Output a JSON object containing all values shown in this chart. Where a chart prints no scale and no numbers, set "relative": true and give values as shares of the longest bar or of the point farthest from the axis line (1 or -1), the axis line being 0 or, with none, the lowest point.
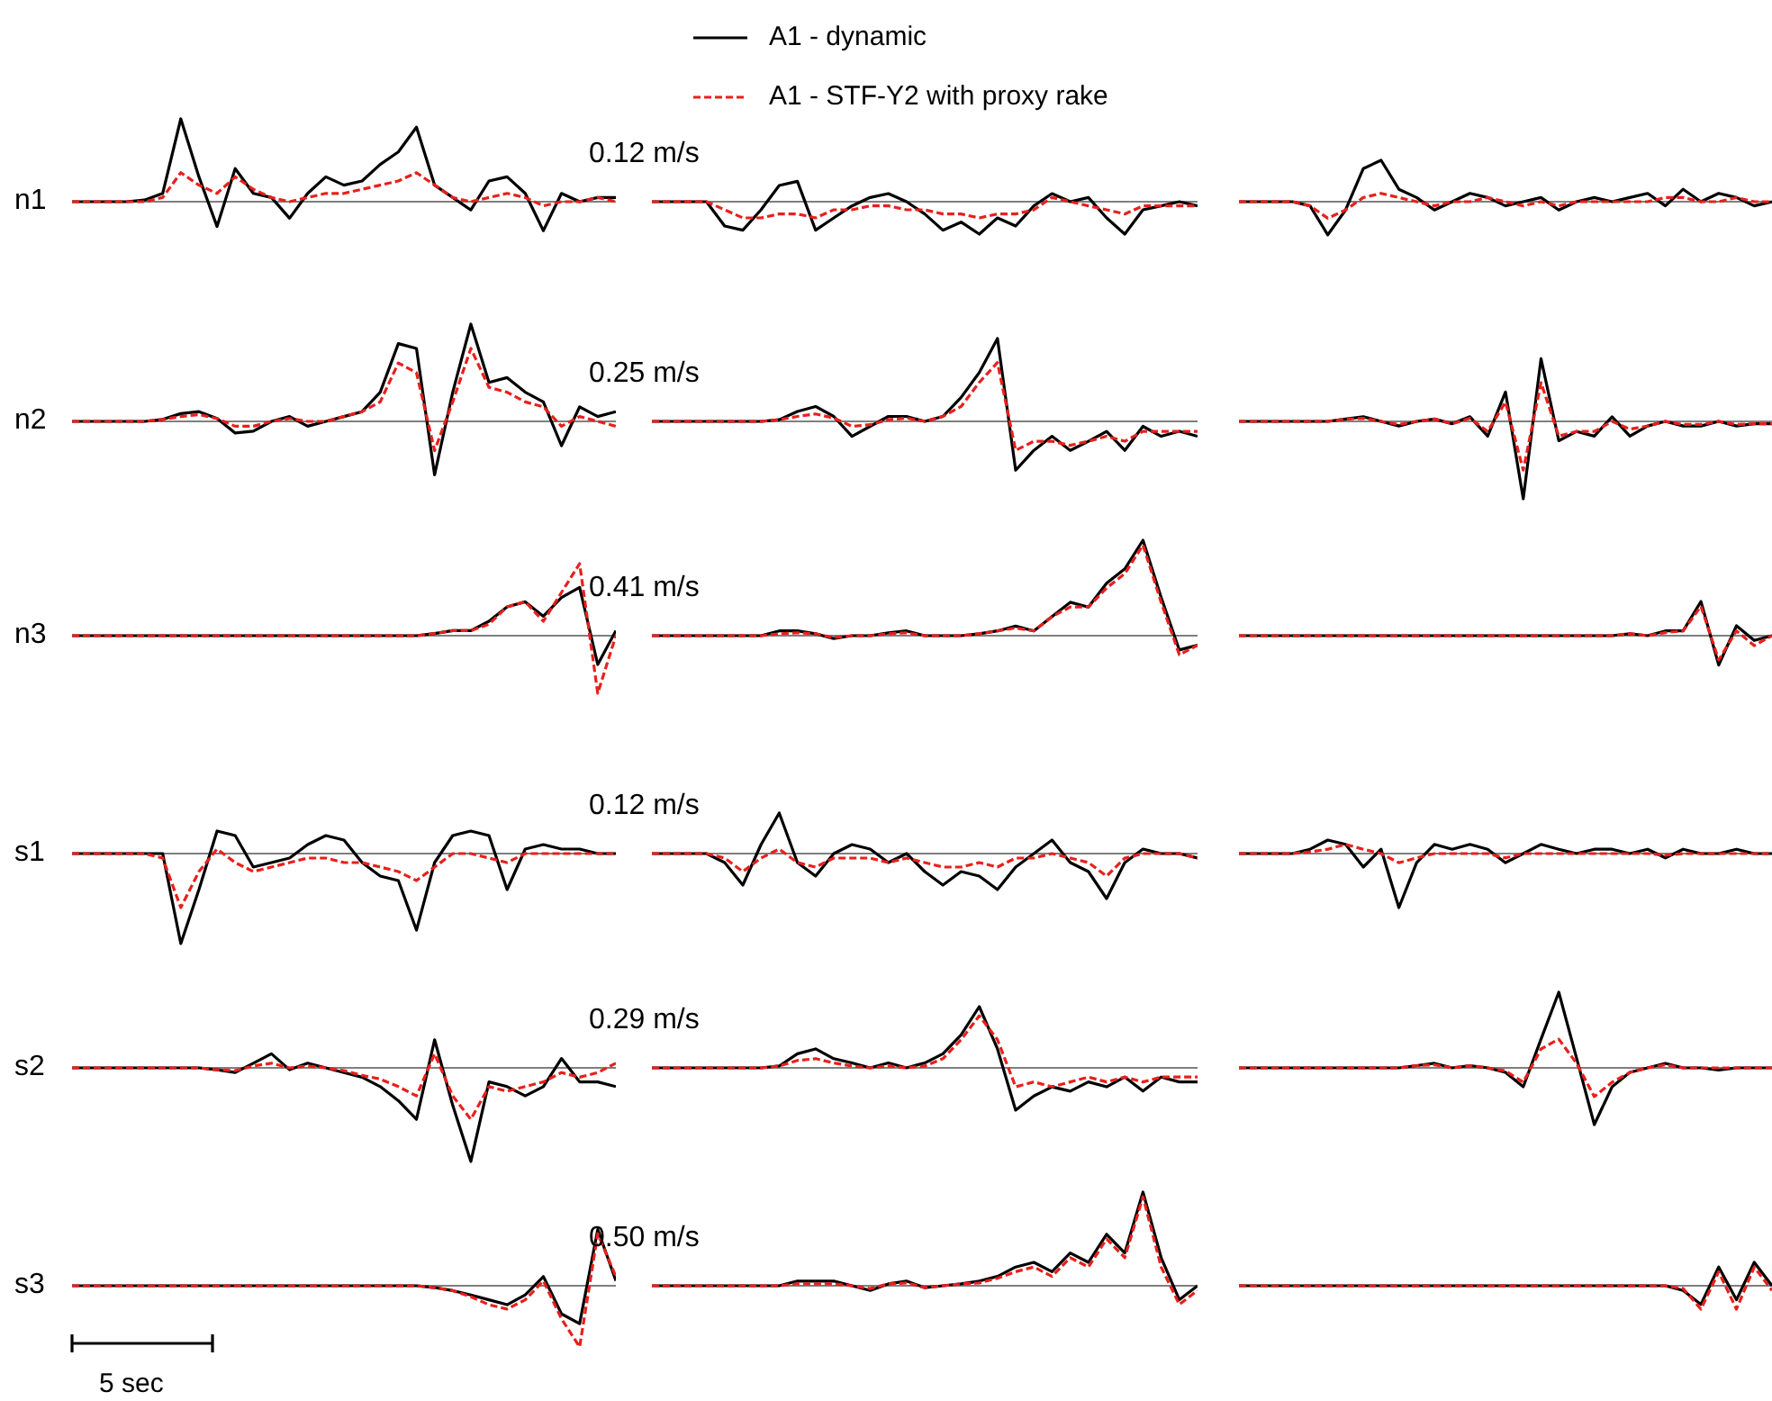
{
  "chart_data": [
    {
      "type": "line",
      "relative": true,
      "ylabel": "n1",
      "annotations": [
        "0.12 m/s"
      ],
      "legend": "top",
      "categories": [
        null,
        null,
        null,
        null,
        null,
        null,
        null,
        null,
        null,
        null,
        null,
        null,
        null,
        null,
        null,
        null,
        null,
        null,
        null,
        null,
        null,
        null,
        null,
        null,
        null,
        null,
        null,
        null,
        null,
        null,
        null
      ],
      "series": [
        {
          "name": "A1 - dynamic",
          "color": "#000000",
          "line_style": "solid",
          "values": [
            0,
            0,
            0,
            0,
            0.02,
            0.1,
            1,
            0.3,
            -0.3,
            0.4,
            0.1,
            0.05,
            -0.2,
            0.1,
            0.3,
            0.2,
            0.25,
            0.45,
            0.6,
            0.9,
            0.2,
            0.05,
            -0.1,
            0.25,
            0.3,
            0.1,
            -0.35,
            0.1,
            0,
            0.05,
            0.05
          ]
        },
        {
          "name": "A1 - STF-Y2 with proxy rake",
          "color": "#e8201c",
          "line_style": "dashed",
          "values": [
            0,
            0,
            0,
            0,
            0,
            0.05,
            0.35,
            0.2,
            0.1,
            0.3,
            0.15,
            0.05,
            0,
            0.05,
            0.1,
            0.1,
            0.15,
            0.2,
            0.25,
            0.35,
            0.2,
            0.05,
            0,
            0.05,
            0.1,
            0.05,
            -0.05,
            0,
            0,
            0.05,
            0
          ]
        }
      ]
    },
    {
      "type": "line",
      "relative": true,
      "categories": [
        null,
        null,
        null,
        null,
        null,
        null,
        null,
        null,
        null,
        null,
        null,
        null,
        null,
        null,
        null,
        null,
        null,
        null,
        null,
        null,
        null,
        null,
        null,
        null,
        null,
        null,
        null,
        null,
        null,
        null,
        null
      ],
      "series": [
        {
          "color": "#000000",
          "line_style": "solid",
          "values": [
            0,
            0,
            0,
            0,
            -0.75,
            -0.88,
            -0.25,
            0.5,
            0.63,
            -0.88,
            -0.5,
            -0.13,
            0.13,
            0.25,
            0,
            -0.38,
            -0.88,
            -0.63,
            -1,
            -0.5,
            -0.75,
            -0.13,
            0.25,
            0,
            0.13,
            -0.5,
            -1,
            -0.25,
            -0.13,
            0,
            -0.13
          ]
        },
        {
          "color": "#e8201c",
          "line_style": "dashed",
          "values": [
            0,
            0,
            0,
            0,
            -0.25,
            -0.5,
            -0.5,
            -0.38,
            -0.38,
            -0.5,
            -0.25,
            -0.25,
            -0.13,
            -0.13,
            -0.25,
            -0.25,
            -0.38,
            -0.38,
            -0.5,
            -0.38,
            -0.38,
            -0.25,
            0.13,
            0,
            -0.13,
            -0.25,
            -0.38,
            -0.13,
            -0.13,
            -0.13,
            -0.13
          ]
        }
      ]
    },
    {
      "type": "line",
      "relative": true,
      "categories": [
        null,
        null,
        null,
        null,
        null,
        null,
        null,
        null,
        null,
        null,
        null,
        null,
        null,
        null,
        null,
        null,
        null,
        null,
        null,
        null,
        null,
        null,
        null,
        null,
        null,
        null,
        null,
        null,
        null,
        null,
        null
      ],
      "series": [
        {
          "color": "#000000",
          "line_style": "solid",
          "values": [
            0,
            0,
            0,
            0,
            -0.1,
            -0.8,
            -0.2,
            0.8,
            1,
            0.3,
            0.1,
            -0.2,
            0,
            0.2,
            0.1,
            -0.1,
            0,
            0.1,
            -0.2,
            0,
            0.1,
            0,
            0.1,
            0.2,
            -0.1,
            0.3,
            0,
            0.2,
            0.1,
            -0.1,
            0
          ]
        },
        {
          "color": "#e8201c",
          "line_style": "dashed",
          "values": [
            0,
            0,
            0,
            0,
            -0.1,
            -0.4,
            -0.2,
            0.1,
            0.2,
            0.1,
            0,
            -0.1,
            0,
            0,
            0.1,
            0,
            -0.1,
            0,
            -0.1,
            0,
            0,
            0,
            0,
            0,
            0.1,
            0.1,
            0,
            0,
            0.1,
            0,
            0
          ]
        }
      ]
    },
    {
      "type": "line",
      "relative": true,
      "ylabel": "n2",
      "annotations": [
        "0.25 m/s"
      ],
      "categories": [
        null,
        null,
        null,
        null,
        null,
        null,
        null,
        null,
        null,
        null,
        null,
        null,
        null,
        null,
        null,
        null,
        null,
        null,
        null,
        null,
        null,
        null,
        null,
        null,
        null,
        null,
        null,
        null,
        null,
        null,
        null
      ],
      "series": [
        {
          "color": "#000000",
          "line_style": "solid",
          "values": [
            0,
            0,
            0,
            0,
            0,
            0.02,
            0.08,
            0.1,
            0.03,
            -0.12,
            -0.1,
            0,
            0.05,
            -0.05,
            0,
            0.05,
            0.1,
            0.3,
            0.8,
            0.75,
            -0.55,
            0.3,
            1,
            0.4,
            0.45,
            0.3,
            0.2,
            -0.25,
            0.15,
            0.05,
            0.1
          ]
        },
        {
          "color": "#e8201c",
          "line_style": "dashed",
          "values": [
            0,
            0,
            0,
            0,
            0,
            0.02,
            0.05,
            0.07,
            0.03,
            -0.05,
            -0.05,
            0,
            0.03,
            0,
            0,
            0.05,
            0.1,
            0.2,
            0.6,
            0.5,
            -0.3,
            0.2,
            0.75,
            0.35,
            0.3,
            0.2,
            0.15,
            -0.05,
            0.05,
            0,
            -0.05
          ]
        }
      ]
    },
    {
      "type": "line",
      "relative": true,
      "categories": [
        null,
        null,
        null,
        null,
        null,
        null,
        null,
        null,
        null,
        null,
        null,
        null,
        null,
        null,
        null,
        null,
        null,
        null,
        null,
        null,
        null,
        null,
        null,
        null,
        null,
        null,
        null,
        null,
        null,
        null,
        null
      ],
      "series": [
        {
          "color": "#000000",
          "line_style": "solid",
          "values": [
            0,
            0,
            0,
            0,
            0,
            0,
            0,
            0.02,
            0.12,
            0.18,
            0.06,
            -0.18,
            -0.06,
            0.06,
            0.06,
            0,
            0.06,
            0.29,
            0.59,
            1,
            -0.59,
            -0.35,
            -0.18,
            -0.35,
            -0.24,
            -0.12,
            -0.35,
            -0.06,
            -0.18,
            -0.12,
            -0.18
          ]
        },
        {
          "color": "#e8201c",
          "line_style": "dashed",
          "values": [
            0,
            0,
            0,
            0,
            0,
            0,
            0,
            0.02,
            0.06,
            0.09,
            0.04,
            -0.06,
            -0.04,
            0.02,
            0.04,
            0,
            0.06,
            0.18,
            0.47,
            0.71,
            -0.35,
            -0.24,
            -0.24,
            -0.29,
            -0.24,
            -0.18,
            -0.24,
            -0.12,
            -0.12,
            -0.12,
            -0.12
          ]
        }
      ]
    },
    {
      "type": "line",
      "relative": true,
      "categories": [
        null,
        null,
        null,
        null,
        null,
        null,
        null,
        null,
        null,
        null,
        null,
        null,
        null,
        null,
        null,
        null,
        null,
        null,
        null,
        null,
        null,
        null,
        null,
        null,
        null,
        null,
        null,
        null,
        null,
        null,
        null
      ],
      "series": [
        {
          "color": "#000000",
          "line_style": "solid",
          "values": [
            0,
            0,
            0,
            0,
            0,
            0,
            0.03,
            0.06,
            0,
            -0.06,
            0,
            0.03,
            -0.03,
            0.06,
            -0.19,
            0.38,
            -1,
            0.81,
            -0.25,
            -0.13,
            -0.19,
            0.06,
            -0.19,
            -0.06,
            0,
            -0.06,
            -0.06,
            0,
            -0.06,
            -0.03,
            -0.03
          ]
        },
        {
          "color": "#e8201c",
          "line_style": "dashed",
          "values": [
            0,
            0,
            0,
            0,
            0,
            0,
            0.03,
            0.04,
            0,
            -0.04,
            0,
            0.03,
            -0.03,
            0.04,
            -0.13,
            0.25,
            -0.63,
            0.5,
            -0.19,
            -0.13,
            -0.13,
            0,
            -0.1,
            -0.06,
            0,
            -0.04,
            -0.04,
            0,
            -0.04,
            -0.03,
            -0.03
          ]
        }
      ]
    },
    {
      "type": "line",
      "relative": true,
      "ylabel": "n3",
      "annotations": [
        "0.41 m/s"
      ],
      "categories": [
        null,
        null,
        null,
        null,
        null,
        null,
        null,
        null,
        null,
        null,
        null,
        null,
        null,
        null,
        null,
        null,
        null,
        null,
        null,
        null,
        null,
        null,
        null,
        null,
        null,
        null,
        null,
        null,
        null,
        null,
        null
      ],
      "series": [
        {
          "color": "#000000",
          "line_style": "solid",
          "values": [
            0,
            0,
            0,
            0,
            0,
            0,
            0,
            0,
            0,
            0,
            0,
            0,
            0,
            0,
            0,
            0,
            0,
            0,
            0,
            0,
            0.03,
            0.07,
            0.07,
            0.2,
            0.4,
            0.47,
            0.27,
            0.53,
            0.67,
            -0.4,
            0.07
          ]
        },
        {
          "color": "#e8201c",
          "line_style": "dashed",
          "values": [
            0,
            0,
            0,
            0,
            0,
            0,
            0,
            0,
            0,
            0,
            0,
            0,
            0,
            0,
            0,
            0,
            0,
            0,
            0,
            0,
            0.03,
            0.07,
            0.07,
            0.16,
            0.4,
            0.47,
            0.2,
            0.6,
            1,
            -0.8,
            0
          ]
        }
      ]
    },
    {
      "type": "line",
      "relative": true,
      "categories": [
        null,
        null,
        null,
        null,
        null,
        null,
        null,
        null,
        null,
        null,
        null,
        null,
        null,
        null,
        null,
        null,
        null,
        null,
        null,
        null,
        null,
        null,
        null,
        null,
        null,
        null,
        null,
        null,
        null,
        null,
        null
      ],
      "series": [
        {
          "color": "#000000",
          "line_style": "solid",
          "values": [
            0,
            0,
            0,
            0,
            0,
            0,
            0,
            0.05,
            0.05,
            0.02,
            -0.03,
            0,
            0,
            0.03,
            0.05,
            0,
            0,
            0,
            0.02,
            0.05,
            0.1,
            0.05,
            0.2,
            0.35,
            0.3,
            0.55,
            0.7,
            1,
            0.4,
            -0.15,
            -0.1
          ]
        },
        {
          "color": "#e8201c",
          "line_style": "dashed",
          "values": [
            0,
            0,
            0,
            0,
            0,
            0,
            0,
            0.02,
            0.03,
            0.02,
            -0.02,
            0,
            0,
            0.02,
            0.03,
            0,
            0,
            0,
            0.02,
            0.05,
            0.08,
            0.05,
            0.2,
            0.3,
            0.3,
            0.5,
            0.65,
            0.95,
            0.35,
            -0.2,
            -0.1
          ]
        }
      ]
    },
    {
      "type": "line",
      "relative": true,
      "categories": [
        null,
        null,
        null,
        null,
        null,
        null,
        null,
        null,
        null,
        null,
        null,
        null,
        null,
        null,
        null,
        null,
        null,
        null,
        null,
        null,
        null,
        null,
        null,
        null,
        null,
        null,
        null,
        null,
        null,
        null,
        null
      ],
      "series": [
        {
          "color": "#000000",
          "line_style": "solid",
          "values": [
            0,
            0,
            0,
            0,
            0,
            0,
            0,
            0,
            0,
            0,
            0,
            0,
            0,
            0,
            0,
            0,
            0,
            0,
            0,
            0,
            0,
            0,
            0.06,
            0,
            0.14,
            0.14,
            1,
            -0.86,
            0.29,
            -0.14,
            0
          ]
        },
        {
          "color": "#e8201c",
          "line_style": "dashed",
          "values": [
            0,
            0,
            0,
            0,
            0,
            0,
            0,
            0,
            0,
            0,
            0,
            0,
            0,
            0,
            0,
            0,
            0,
            0,
            0,
            0,
            0,
            0,
            0.06,
            0,
            0.09,
            0.14,
            0.86,
            -0.71,
            0.14,
            -0.29,
            0
          ]
        }
      ]
    },
    {
      "type": "line",
      "relative": true,
      "ylabel": "s1",
      "annotations": [
        "0.12 m/s"
      ],
      "categories": [
        null,
        null,
        null,
        null,
        null,
        null,
        null,
        null,
        null,
        null,
        null,
        null,
        null,
        null,
        null,
        null,
        null,
        null,
        null,
        null,
        null,
        null,
        null,
        null,
        null,
        null,
        null,
        null,
        null,
        null,
        null
      ],
      "series": [
        {
          "color": "#000000",
          "line_style": "solid",
          "values": [
            0,
            0,
            0,
            0,
            0,
            0,
            -1,
            -0.4,
            0.25,
            0.2,
            -0.15,
            -0.1,
            -0.05,
            0.1,
            0.2,
            0.15,
            -0.1,
            -0.25,
            -0.3,
            -0.85,
            -0.1,
            0.2,
            0.25,
            0.2,
            -0.4,
            0.05,
            0.1,
            0.05,
            0.05,
            0,
            0
          ]
        },
        {
          "color": "#e8201c",
          "line_style": "dashed",
          "values": [
            0,
            0,
            0,
            0,
            0,
            -0.05,
            -0.6,
            -0.2,
            0.05,
            -0.1,
            -0.2,
            -0.15,
            -0.1,
            -0.05,
            -0.05,
            -0.1,
            -0.1,
            -0.15,
            -0.2,
            -0.3,
            -0.15,
            0,
            0,
            -0.05,
            -0.1,
            0,
            0,
            0,
            0,
            0,
            0
          ]
        }
      ]
    },
    {
      "type": "line",
      "relative": true,
      "categories": [
        null,
        null,
        null,
        null,
        null,
        null,
        null,
        null,
        null,
        null,
        null,
        null,
        null,
        null,
        null,
        null,
        null,
        null,
        null,
        null,
        null,
        null,
        null,
        null,
        null,
        null,
        null,
        null,
        null,
        null,
        null
      ],
      "series": [
        {
          "color": "#000000",
          "line_style": "solid",
          "values": [
            0,
            0,
            0,
            0,
            -0.2,
            -0.7,
            0.2,
            0.9,
            -0.2,
            -0.5,
            0,
            0.2,
            0.1,
            -0.2,
            0,
            -0.4,
            -0.7,
            -0.4,
            -0.5,
            -0.8,
            -0.3,
            0,
            0.3,
            -0.2,
            -0.4,
            -1,
            -0.2,
            0.1,
            0,
            0,
            -0.1
          ]
        },
        {
          "color": "#e8201c",
          "line_style": "dashed",
          "values": [
            0,
            0,
            0,
            0,
            -0.1,
            -0.4,
            -0.1,
            0.1,
            -0.2,
            -0.3,
            -0.1,
            -0.1,
            -0.1,
            -0.2,
            -0.1,
            -0.2,
            -0.3,
            -0.3,
            -0.2,
            -0.3,
            -0.1,
            -0.1,
            0,
            -0.1,
            -0.2,
            -0.5,
            -0.1,
            0,
            0,
            0,
            -0.1
          ]
        }
      ]
    },
    {
      "type": "line",
      "relative": true,
      "categories": [
        null,
        null,
        null,
        null,
        null,
        null,
        null,
        null,
        null,
        null,
        null,
        null,
        null,
        null,
        null,
        null,
        null,
        null,
        null,
        null,
        null,
        null,
        null,
        null,
        null,
        null,
        null,
        null,
        null,
        null,
        null
      ],
      "series": [
        {
          "color": "#000000",
          "line_style": "solid",
          "values": [
            0,
            0,
            0,
            0,
            0.08,
            0.25,
            0.17,
            -0.25,
            0.08,
            -1,
            -0.17,
            0.17,
            0.08,
            0.17,
            0.08,
            -0.17,
            0,
            0.17,
            0.08,
            0,
            0.08,
            0.08,
            0,
            0.08,
            -0.08,
            0.08,
            0,
            0,
            0.08,
            0,
            0
          ]
        },
        {
          "color": "#e8201c",
          "line_style": "dashed",
          "values": [
            0,
            0,
            0,
            0,
            0.03,
            0.08,
            0.17,
            0.08,
            0,
            -0.17,
            -0.08,
            0,
            0,
            0,
            0,
            -0.08,
            0,
            0,
            0,
            0,
            0,
            0,
            0,
            0,
            -0.03,
            0,
            0,
            0,
            0,
            0,
            0
          ]
        }
      ]
    },
    {
      "type": "line",
      "relative": true,
      "ylabel": "s2",
      "annotations": [
        "0.29 m/s"
      ],
      "categories": [
        null,
        null,
        null,
        null,
        null,
        null,
        null,
        null,
        null,
        null,
        null,
        null,
        null,
        null,
        null,
        null,
        null,
        null,
        null,
        null,
        null,
        null,
        null,
        null,
        null,
        null,
        null,
        null,
        null,
        null,
        null
      ],
      "series": [
        {
          "color": "#000000",
          "line_style": "solid",
          "values": [
            0,
            0,
            0,
            0,
            0,
            0,
            0,
            0,
            -0.02,
            -0.05,
            0.05,
            0.15,
            -0.02,
            0.05,
            0,
            -0.05,
            -0.1,
            -0.2,
            -0.35,
            -0.55,
            0.3,
            -0.4,
            -1,
            -0.15,
            -0.2,
            -0.3,
            -0.2,
            0.1,
            -0.15,
            -0.15,
            -0.2
          ]
        },
        {
          "color": "#e8201c",
          "line_style": "dashed",
          "values": [
            0,
            0,
            0,
            0,
            0,
            0,
            0,
            0,
            -0.02,
            -0.03,
            0.02,
            0.05,
            0,
            0.02,
            0,
            -0.03,
            -0.08,
            -0.12,
            -0.2,
            -0.3,
            0.15,
            -0.3,
            -0.55,
            -0.2,
            -0.25,
            -0.2,
            -0.15,
            -0.05,
            -0.1,
            -0.05,
            0.05
          ]
        }
      ]
    },
    {
      "type": "line",
      "relative": true,
      "categories": [
        null,
        null,
        null,
        null,
        null,
        null,
        null,
        null,
        null,
        null,
        null,
        null,
        null,
        null,
        null,
        null,
        null,
        null,
        null,
        null,
        null,
        null,
        null,
        null,
        null,
        null,
        null,
        null,
        null,
        null,
        null
      ],
      "series": [
        {
          "color": "#000000",
          "line_style": "solid",
          "values": [
            0,
            0,
            0,
            0,
            0,
            0,
            0,
            0.03,
            0.23,
            0.31,
            0.15,
            0.08,
            0,
            0.08,
            0,
            0.08,
            0.23,
            0.54,
            1,
            0.31,
            -0.69,
            -0.46,
            -0.31,
            -0.38,
            -0.23,
            -0.31,
            -0.15,
            -0.38,
            -0.15,
            -0.23,
            -0.23
          ]
        },
        {
          "color": "#e8201c",
          "line_style": "dashed",
          "values": [
            0,
            0,
            0,
            0,
            0,
            0,
            0,
            0.03,
            0.12,
            0.15,
            0.08,
            0.03,
            0,
            0.03,
            0,
            0.03,
            0.15,
            0.46,
            0.85,
            0.46,
            -0.31,
            -0.23,
            -0.31,
            -0.23,
            -0.15,
            -0.23,
            -0.15,
            -0.23,
            -0.15,
            -0.15,
            -0.15
          ]
        }
      ]
    },
    {
      "type": "line",
      "relative": true,
      "categories": [
        null,
        null,
        null,
        null,
        null,
        null,
        null,
        null,
        null,
        null,
        null,
        null,
        null,
        null,
        null,
        null,
        null,
        null,
        null,
        null,
        null,
        null,
        null,
        null,
        null,
        null,
        null,
        null,
        null,
        null,
        null
      ],
      "series": [
        {
          "color": "#000000",
          "line_style": "solid",
          "values": [
            0,
            0,
            0,
            0,
            0,
            0,
            0,
            0,
            0,
            0,
            0.03,
            0.06,
            0,
            0.03,
            0,
            -0.06,
            -0.25,
            0.38,
            1,
            0.13,
            -0.75,
            -0.25,
            -0.06,
            0,
            0.06,
            0,
            0,
            -0.03,
            0,
            0,
            0
          ]
        },
        {
          "color": "#e8201c",
          "line_style": "dashed",
          "values": [
            0,
            0,
            0,
            0,
            0,
            0,
            0,
            0,
            0,
            0,
            0.03,
            0.04,
            0,
            0.03,
            0,
            -0.04,
            -0.19,
            0.25,
            0.38,
            0.06,
            -0.38,
            -0.19,
            -0.06,
            0,
            0.04,
            0,
            0,
            0,
            0,
            0,
            0
          ]
        }
      ]
    },
    {
      "type": "line",
      "relative": true,
      "ylabel": "s3",
      "annotations": [
        "0.50 m/s",
        "5 sec"
      ],
      "categories": [
        null,
        null,
        null,
        null,
        null,
        null,
        null,
        null,
        null,
        null,
        null,
        null,
        null,
        null,
        null,
        null,
        null,
        null,
        null,
        null,
        null,
        null,
        null,
        null,
        null,
        null,
        null,
        null,
        null,
        null,
        null
      ],
      "series": [
        {
          "color": "#000000",
          "line_style": "solid",
          "values": [
            0,
            0,
            0,
            0,
            0,
            0,
            0,
            0,
            0,
            0,
            0,
            0,
            0,
            0,
            0,
            0,
            0,
            0,
            0,
            0,
            -0.03,
            -0.08,
            -0.15,
            -0.23,
            -0.31,
            -0.15,
            0.15,
            -0.46,
            -0.62,
            0.92,
            0.08
          ]
        },
        {
          "color": "#e8201c",
          "line_style": "dashed",
          "values": [
            0,
            0,
            0,
            0,
            0,
            0,
            0,
            0,
            0,
            0,
            0,
            0,
            0,
            0,
            0,
            0,
            0,
            0,
            0,
            0,
            -0.03,
            -0.08,
            -0.18,
            -0.31,
            -0.38,
            -0.23,
            0.08,
            -0.54,
            -1,
            0.85,
            0.15
          ]
        }
      ]
    },
    {
      "type": "line",
      "relative": true,
      "categories": [
        null,
        null,
        null,
        null,
        null,
        null,
        null,
        null,
        null,
        null,
        null,
        null,
        null,
        null,
        null,
        null,
        null,
        null,
        null,
        null,
        null,
        null,
        null,
        null,
        null,
        null,
        null,
        null,
        null,
        null,
        null
      ],
      "series": [
        {
          "color": "#000000",
          "line_style": "solid",
          "values": [
            0,
            0,
            0,
            0,
            0,
            0,
            0,
            0,
            0.05,
            0.05,
            0.05,
            0,
            -0.05,
            0.02,
            0.05,
            -0.02,
            0,
            0.02,
            0.05,
            0.1,
            0.2,
            0.25,
            0.15,
            0.35,
            0.25,
            0.55,
            0.35,
            1,
            0.3,
            -0.15,
            0
          ]
        },
        {
          "color": "#e8201c",
          "line_style": "dashed",
          "values": [
            0,
            0,
            0,
            0,
            0,
            0,
            0,
            0,
            0.02,
            0.02,
            0.02,
            0,
            -0.03,
            0.02,
            0.03,
            -0.02,
            0,
            0.02,
            0.03,
            0.08,
            0.15,
            0.2,
            0.1,
            0.3,
            0.2,
            0.5,
            0.3,
            0.95,
            0.2,
            -0.2,
            -0.05
          ]
        }
      ]
    },
    {
      "type": "line",
      "relative": true,
      "categories": [
        null,
        null,
        null,
        null,
        null,
        null,
        null,
        null,
        null,
        null,
        null,
        null,
        null,
        null,
        null,
        null,
        null,
        null,
        null,
        null,
        null,
        null,
        null,
        null,
        null,
        null,
        null,
        null,
        null,
        null,
        null
      ],
      "series": [
        {
          "color": "#000000",
          "line_style": "solid",
          "values": [
            0,
            0,
            0,
            0,
            0,
            0,
            0,
            0,
            0,
            0,
            0,
            0,
            0,
            0,
            0,
            0,
            0,
            0,
            0,
            0,
            0,
            0,
            0,
            0,
            0,
            -0.2,
            -0.8,
            0.8,
            -0.6,
            1,
            0
          ]
        },
        {
          "color": "#e8201c",
          "line_style": "dashed",
          "values": [
            0,
            0,
            0,
            0,
            0,
            0,
            0,
            0,
            0,
            0,
            0,
            0,
            0,
            0,
            0,
            0,
            0,
            0,
            0,
            0,
            0,
            0,
            0,
            0,
            0,
            -0.12,
            -1,
            0.6,
            -1,
            0.8,
            -0.2
          ]
        }
      ]
    }
  ]
}
